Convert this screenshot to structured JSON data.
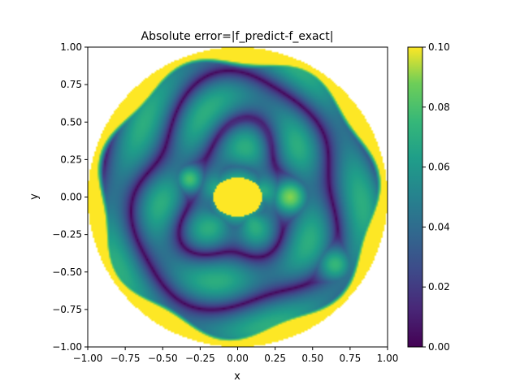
{
  "chart_data": {
    "type": "heatmap",
    "title": "Absolute error=|f_predict-f_exact|",
    "xlabel": "x",
    "ylabel": "y",
    "xlim": [
      -1.0,
      1.0
    ],
    "ylim": [
      -1.0,
      1.0
    ],
    "x_ticks": [
      "−1.00",
      "−0.75",
      "−0.50",
      "−0.25",
      "0.00",
      "0.25",
      "0.50",
      "0.75",
      "1.00"
    ],
    "y_ticks": [
      "1.00",
      "0.75",
      "0.50",
      "0.25",
      "0.00",
      "−0.25",
      "−0.50",
      "−0.75",
      "−1.00"
    ],
    "x_tick_values": [
      -1.0,
      -0.75,
      -0.5,
      -0.25,
      0.0,
      0.25,
      0.5,
      0.75,
      1.0
    ],
    "y_tick_values": [
      1.0,
      0.75,
      0.5,
      0.25,
      0.0,
      -0.25,
      -0.5,
      -0.75,
      -1.0
    ],
    "colormap": "viridis",
    "colorbar": {
      "vmin": 0.0,
      "vmax": 0.1,
      "ticks": [
        "0.00",
        "0.02",
        "0.04",
        "0.06",
        "0.08",
        "0.10"
      ],
      "tick_values": [
        0.0,
        0.02,
        0.04,
        0.06,
        0.08,
        0.1
      ]
    },
    "domain_radius": 1.0,
    "notable_regions": [
      {
        "x": 0.0,
        "y": 0.0,
        "value": 0.1
      },
      {
        "x": 0.35,
        "y": 0.0,
        "value": 0.09
      },
      {
        "x": -0.32,
        "y": 0.12,
        "value": 0.08
      },
      {
        "x": 0.65,
        "y": -0.45,
        "value": 0.075
      },
      {
        "x": 0.05,
        "y": 0.35,
        "value": 0.06
      }
    ],
    "grid": false
  }
}
